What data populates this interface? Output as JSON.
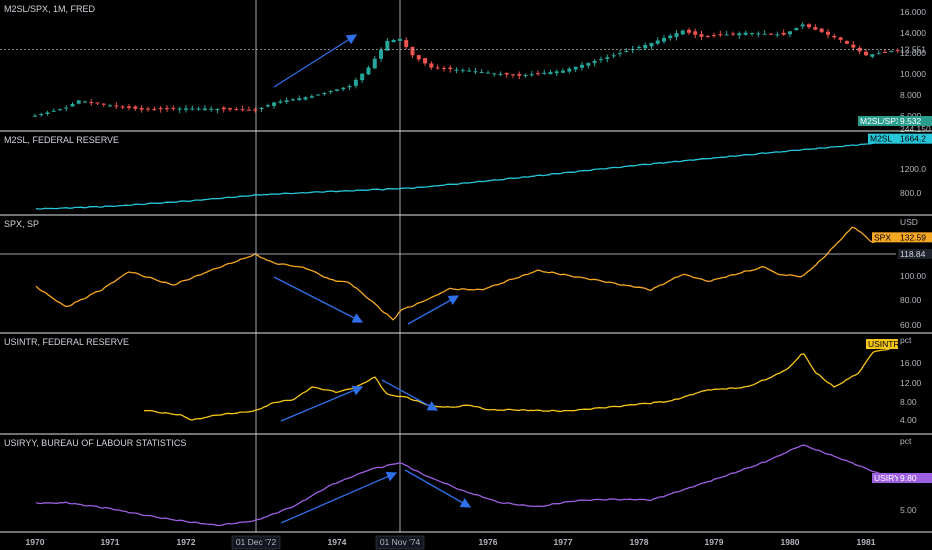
{
  "chart_data": [
    {
      "type": "candlestick",
      "title": "M2SL/SPX, 1M, FRED",
      "y_ticks": [
        "16.000",
        "14.000",
        "12.000",
        "10.000",
        "8.000",
        "6.000"
      ],
      "ylim": [
        5,
        17
      ],
      "last_label": "M2SL/SPX",
      "last_value": "9.532",
      "last_value_secondary": "244.150",
      "crosshair_value": "12.551",
      "anchors": [
        [
          "1970-01",
          6.1
        ],
        [
          "1970-06",
          6.9
        ],
        [
          "1970-08",
          7.6
        ],
        [
          "1971-01",
          7.1
        ],
        [
          "1971-06",
          6.7
        ],
        [
          "1971-12",
          6.8
        ],
        [
          "1972-04",
          6.8
        ],
        [
          "1972-12",
          6.6
        ],
        [
          "1973-03",
          7.4
        ],
        [
          "1973-09",
          8.0
        ],
        [
          "1974-03",
          9.0
        ],
        [
          "1974-06",
          10.8
        ],
        [
          "1974-09",
          13.4
        ],
        [
          "1974-11",
          13.6
        ],
        [
          "1975-01",
          12.0
        ],
        [
          "1975-04",
          10.8
        ],
        [
          "1975-10",
          10.5
        ],
        [
          "1976-01",
          10.3
        ],
        [
          "1976-06",
          10.0
        ],
        [
          "1977-01",
          10.5
        ],
        [
          "1977-09",
          12.0
        ],
        [
          "1978-03",
          13.2
        ],
        [
          "1978-08",
          14.4
        ],
        [
          "1978-11",
          13.8
        ],
        [
          "1979-06",
          14.2
        ],
        [
          "1979-12",
          14.0
        ],
        [
          "1980-03",
          15.0
        ],
        [
          "1980-09",
          13.5
        ],
        [
          "1981-01",
          12.0
        ],
        [
          "1981-06",
          12.5
        ]
      ]
    },
    {
      "type": "line",
      "title": "M2SL, FEDERAL RESERVE",
      "color": "#26c6da",
      "y_ticks": [
        "1200.0",
        "800.0"
      ],
      "ylim": [
        560,
        1720
      ],
      "last_label": "M2SL",
      "last_value": "1664.2",
      "anchors": [
        [
          "1970-01",
          590
        ],
        [
          "1971-01",
          630
        ],
        [
          "1972-01",
          710
        ],
        [
          "1973-01",
          810
        ],
        [
          "1974-01",
          860
        ],
        [
          "1975-01",
          910
        ],
        [
          "1976-01",
          1020
        ],
        [
          "1977-01",
          1140
        ],
        [
          "1978-01",
          1260
        ],
        [
          "1979-01",
          1370
        ],
        [
          "1980-01",
          1480
        ],
        [
          "1981-01",
          1580
        ],
        [
          "1981-06",
          1664
        ]
      ]
    },
    {
      "type": "line",
      "title": "SPX, SP",
      "color": "#f5a623",
      "unit": "USD",
      "y_ticks": [
        "100.00",
        "80.00",
        "60.00"
      ],
      "ylim": [
        57,
        147
      ],
      "last_label": "SPX",
      "last_value": "132.59",
      "crosshair_value": "118.84",
      "anchors": [
        [
          "1970-01",
          92
        ],
        [
          "1970-06",
          75
        ],
        [
          "1970-12",
          90
        ],
        [
          "1971-04",
          104
        ],
        [
          "1971-11",
          93
        ],
        [
          "1972-06",
          107
        ],
        [
          "1972-12",
          118
        ],
        [
          "1973-03",
          111
        ],
        [
          "1973-08",
          107
        ],
        [
          "1973-12",
          97
        ],
        [
          "1974-03",
          95
        ],
        [
          "1974-08",
          73
        ],
        [
          "1974-10",
          64
        ],
        [
          "1974-11",
          72
        ],
        [
          "1975-02",
          78
        ],
        [
          "1975-07",
          90
        ],
        [
          "1975-12",
          89
        ],
        [
          "1976-09",
          105
        ],
        [
          "1977-05",
          98
        ],
        [
          "1978-03",
          89
        ],
        [
          "1978-08",
          102
        ],
        [
          "1978-12",
          96
        ],
        [
          "1979-09",
          108
        ],
        [
          "1979-11",
          102
        ],
        [
          "1980-03",
          100
        ],
        [
          "1980-06",
          114
        ],
        [
          "1980-11",
          141
        ],
        [
          "1981-02",
          128
        ],
        [
          "1981-06",
          132
        ]
      ]
    },
    {
      "type": "line",
      "title": "USINTR, FEDERAL RESERVE",
      "color": "#f5c518",
      "unit": "pct",
      "y_ticks": [
        "16.00",
        "12.00",
        "8.00",
        "4.00"
      ],
      "ylim": [
        1.5,
        20
      ],
      "last_label": "USINTR",
      "anchors": [
        [
          "1971-06",
          5.5
        ],
        [
          "1971-09",
          5.0
        ],
        [
          "1971-12",
          4.5
        ],
        [
          "1972-02",
          3.5
        ],
        [
          "1972-06",
          4.5
        ],
        [
          "1972-12",
          5.3
        ],
        [
          "1973-03",
          7.0
        ],
        [
          "1973-06",
          7.5
        ],
        [
          "1973-09",
          10.0
        ],
        [
          "1974-01",
          9.0
        ],
        [
          "1974-04",
          10.0
        ],
        [
          "1974-07",
          12.0
        ],
        [
          "1974-09",
          8.5
        ],
        [
          "1974-12",
          8.0
        ],
        [
          "1975-04",
          6.25
        ],
        [
          "1975-07",
          6.0
        ],
        [
          "1975-10",
          6.5
        ],
        [
          "1976-01",
          5.5
        ],
        [
          "1976-06",
          5.5
        ],
        [
          "1977-01",
          5.25
        ],
        [
          "1977-06",
          5.75
        ],
        [
          "1977-12",
          6.5
        ],
        [
          "1978-06",
          7.25
        ],
        [
          "1978-12",
          9.5
        ],
        [
          "1979-06",
          10.0
        ],
        [
          "1979-10",
          12.0
        ],
        [
          "1980-01",
          14.0
        ],
        [
          "1980-03",
          17.0
        ],
        [
          "1980-05",
          13.0
        ],
        [
          "1980-08",
          10.0
        ],
        [
          "1980-12",
          13.0
        ],
        [
          "1981-02",
          17.0
        ],
        [
          "1981-06",
          18.0
        ]
      ]
    },
    {
      "type": "line",
      "title": "USIRYY, BUREAU OF LABOUR STATISTICS",
      "color": "#9c5fe0",
      "unit": "pct",
      "y_ticks": [
        "5.00"
      ],
      "ylim": [
        2.3,
        15.8
      ],
      "last_label": "USIRYY",
      "last_value": "9.80",
      "anchors": [
        [
          "1970-01",
          6.0
        ],
        [
          "1970-06",
          6.1
        ],
        [
          "1971-01",
          5.2
        ],
        [
          "1971-06",
          4.3
        ],
        [
          "1971-12",
          3.4
        ],
        [
          "1972-06",
          2.7
        ],
        [
          "1972-12",
          3.4
        ],
        [
          "1973-06",
          5.5
        ],
        [
          "1973-12",
          8.7
        ],
        [
          "1974-06",
          11.0
        ],
        [
          "1974-11",
          12.1
        ],
        [
          "1975-03",
          10.2
        ],
        [
          "1975-09",
          7.9
        ],
        [
          "1976-03",
          6.1
        ],
        [
          "1976-09",
          5.5
        ],
        [
          "1977-03",
          6.4
        ],
        [
          "1977-09",
          6.6
        ],
        [
          "1978-03",
          6.5
        ],
        [
          "1978-09",
          8.3
        ],
        [
          "1979-03",
          10.2
        ],
        [
          "1979-09",
          12.2
        ],
        [
          "1980-03",
          14.8
        ],
        [
          "1980-09",
          12.7
        ],
        [
          "1981-03",
          10.5
        ],
        [
          "1981-06",
          9.8
        ]
      ]
    }
  ],
  "x_axis": {
    "ticks": [
      "1970",
      "1971",
      "1972",
      "1974",
      "1976",
      "1977",
      "1978",
      "1979",
      "1980",
      "1981"
    ],
    "crosshair_labels": [
      "01 Dec '72",
      "01 Nov '74"
    ]
  }
}
